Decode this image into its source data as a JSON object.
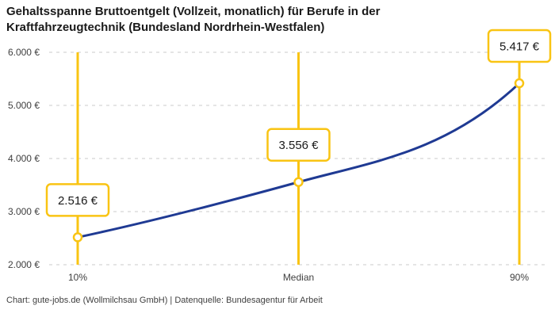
{
  "title": "Gehaltsspanne Bruttoentgelt (Vollzeit, monatlich) für Berufe in der\nKraftfahrzeugtechnik (Bundesland Nordrhein-Westfalen)",
  "attribution": "Chart: gute-jobs.de (Wollmilchsau GmbH) | Datenquelle: Bundesagentur für Arbeit",
  "colors": {
    "accent_yellow": "#F9C413",
    "line_blue": "#1F3A93",
    "grid": "#CBCBCB",
    "text_dark": "#1A1A1A",
    "text_axis": "#3F3F3F",
    "background": "#FFFFFF"
  },
  "chart_data": {
    "type": "line",
    "title": "Gehaltsspanne Bruttoentgelt (Vollzeit, monatlich) für Berufe in der Kraftfahrzeugtechnik (Bundesland Nordrhein-Westfalen)",
    "categories": [
      "10%",
      "Median",
      "90%"
    ],
    "values": [
      2516,
      3556,
      5417
    ],
    "value_labels": [
      "2.516 €",
      "3.556 €",
      "5.417 €"
    ],
    "ylim": [
      2000,
      6000
    ],
    "yticks": [
      2000,
      3000,
      4000,
      5000,
      6000
    ],
    "ytick_labels": [
      "2.000 €",
      "3.000 €",
      "4.000 €",
      "5.000 €",
      "6.000 €"
    ],
    "xlabel": "",
    "ylabel": "",
    "grid": "horizontal-dashed",
    "legend": "none"
  }
}
